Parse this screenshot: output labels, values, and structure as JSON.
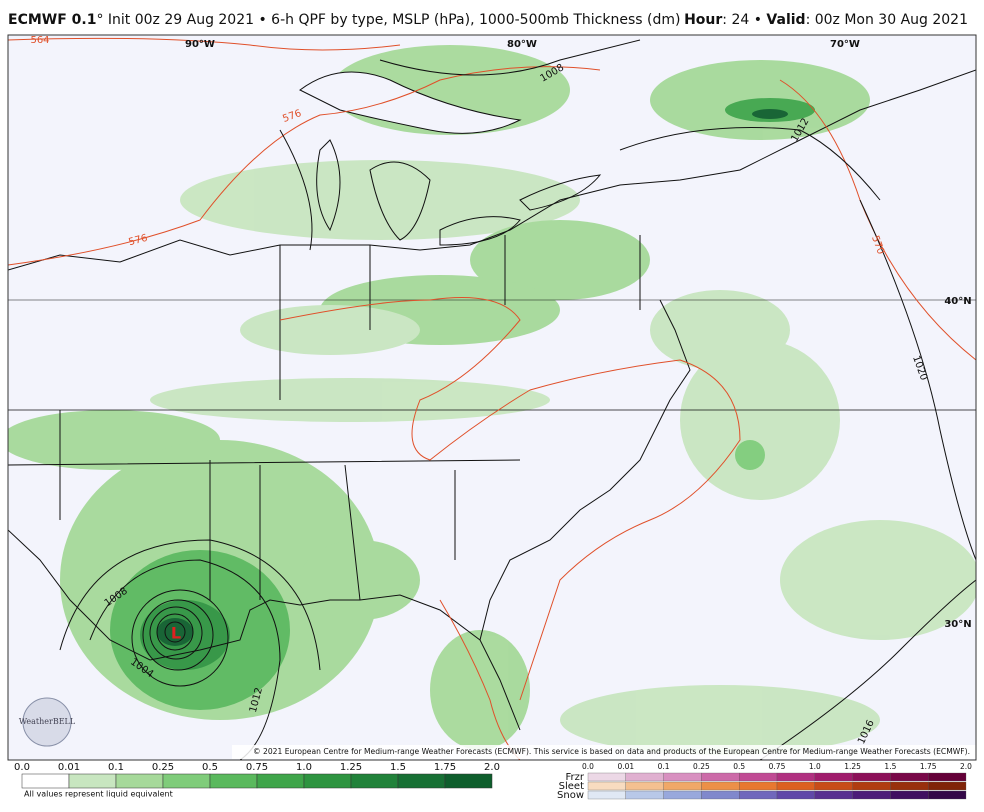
{
  "header": {
    "title_bold": "ECMWF 0.1",
    "title_rest": "° Init 00z 29 Aug 2021 • 6-h QPF by type, MSLP (hPa), 1000-500mb Thickness (dm)",
    "hour_key": "Hour",
    "hour_value": ": 24 • ",
    "valid_key": "Valid",
    "valid_value": ": 00z Mon 30 Aug 2021"
  },
  "map": {
    "longitude_labels": [
      "90°W",
      "80°W",
      "70°W"
    ],
    "latitude_labels": [
      "40°N",
      "30°N"
    ],
    "isobar_labels": [
      "1008",
      "1012",
      "1020",
      "1008",
      "1004",
      "1012",
      "1016"
    ],
    "thickness_labels": [
      "564",
      "576",
      "576",
      "570"
    ],
    "storm_label": "L",
    "logo": "WeatherBELL",
    "credit": "© 2021 European Centre for Medium-range Weather Forecasts (ECMWF). This service is based on data and products of the European Centre for Medium-range Weather Forecasts (ECMWF)."
  },
  "legend": {
    "rain_labels": [
      "0.0",
      "0.01",
      "0.1",
      "0.25",
      "0.5",
      "0.75",
      "1.0",
      "1.25",
      "1.5",
      "1.75",
      "2.0"
    ],
    "note": "All values represent liquid equivalent",
    "type_labels": [
      "Frzr",
      "Sleet",
      "Snow"
    ],
    "type_scale_labels": [
      "0.0",
      "0.01",
      "0.1",
      "0.25",
      "0.5",
      "0.75",
      "1.0",
      "1.25",
      "1.5",
      "1.75",
      "2.0"
    ]
  }
}
